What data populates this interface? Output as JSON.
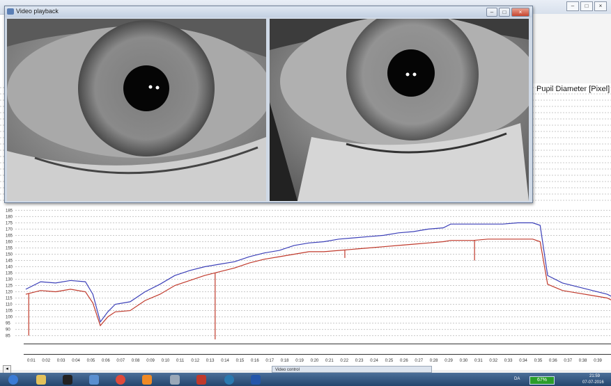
{
  "background_window": {
    "controls": [
      "–",
      "□",
      "×"
    ]
  },
  "side_panel": {
    "label": "Pupil Diameter [Pixel]"
  },
  "video_window": {
    "title": "Video playback",
    "controls": [
      "–",
      "□",
      "×"
    ]
  },
  "chart_data": {
    "type": "line",
    "y_ticks": [
      185,
      180,
      175,
      170,
      165,
      160,
      155,
      150,
      145,
      140,
      135,
      130,
      125,
      120,
      115,
      110,
      105,
      100,
      95,
      90,
      85
    ],
    "ylim": [
      82,
      188
    ],
    "x_ticks": [
      "0:01",
      "0:02",
      "0:03",
      "0:04",
      "0:05",
      "0:06",
      "0:07",
      "0:08",
      "0:09",
      "0:10",
      "0:11",
      "0:12",
      "0:13",
      "0:14",
      "0:15",
      "0:16",
      "0:17",
      "0:18",
      "0:19",
      "0:20",
      "0:21",
      "0:22",
      "0:23",
      "0:24",
      "0:25",
      "0:26",
      "0:27",
      "0:28",
      "0:29",
      "0:30",
      "0:31",
      "0:32",
      "0:33",
      "0:34",
      "0:35",
      "0:36",
      "0:37",
      "0:38",
      "0:39"
    ],
    "series": [
      {
        "color": "#3b3fb8",
        "x": [
          0,
          1,
          2,
          3,
          4,
          4.5,
          5,
          5.5,
          6,
          7,
          8,
          9,
          10,
          11,
          12,
          13,
          14,
          15,
          16,
          17,
          18,
          19,
          20,
          21,
          22,
          23,
          24,
          25,
          26,
          27,
          28,
          28.5,
          29,
          30,
          31,
          32,
          33,
          34,
          34.5,
          35,
          36,
          37,
          38,
          39,
          39.5
        ],
        "y": [
          122,
          128,
          127,
          129,
          128,
          118,
          96,
          104,
          110,
          112,
          120,
          126,
          133,
          137,
          140,
          142,
          144,
          148,
          151,
          153,
          157,
          159,
          160,
          162,
          163,
          164,
          165,
          167,
          168,
          170,
          171,
          174,
          174,
          174,
          174,
          174,
          175,
          175,
          173,
          133,
          127,
          124,
          121,
          118,
          115
        ]
      },
      {
        "color": "#c0392b",
        "x": [
          0,
          1,
          2,
          3,
          4,
          4.5,
          5,
          5.5,
          6,
          7,
          8,
          9,
          10,
          11,
          12,
          13,
          14,
          15,
          16,
          17,
          18,
          19,
          20,
          21,
          22,
          23,
          24,
          25,
          26,
          27,
          28,
          28.5,
          29,
          30,
          31,
          32,
          33,
          34,
          34.5,
          35,
          36,
          37,
          38,
          39,
          39.5
        ],
        "y": [
          118,
          121,
          120,
          122,
          120,
          111,
          93,
          100,
          104,
          105,
          113,
          118,
          125,
          129,
          133,
          136,
          139,
          143,
          146,
          148,
          150,
          152,
          152,
          153,
          154,
          155,
          156,
          157,
          158,
          159,
          160,
          161,
          161,
          161,
          162,
          162,
          162,
          162,
          160,
          126,
          121,
          119,
          117,
          115,
          112
        ]
      }
    ],
    "spikes": [
      {
        "x": 0.2,
        "y": 85
      },
      {
        "x": 12.7,
        "y": 82
      },
      {
        "x": 21.4,
        "y": 147
      },
      {
        "x": 30.1,
        "y": 145
      }
    ]
  },
  "statusbar": {
    "video_control": "Video control",
    "scroll_left": "◂"
  },
  "taskbar": {
    "battery": "67%",
    "lang": "DA",
    "time": "21:59",
    "date": "07-07-2016"
  }
}
